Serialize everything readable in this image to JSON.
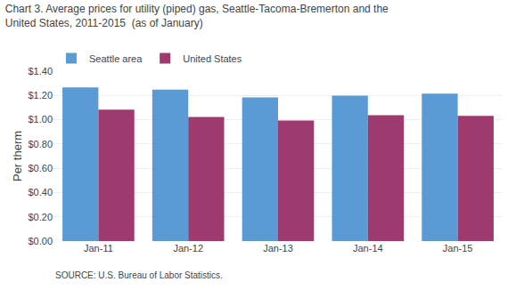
{
  "chart_data": {
    "type": "bar",
    "title": "Chart 3. Average prices for utility (piped) gas, Seattle-Tacoma-Bremerton and the",
    "subtitle": "United States, 2011-2015  (as of January)",
    "ylabel": "Per therm",
    "annotations": [
      "SOURCE: U.S. Bureau of Labor Statistics."
    ],
    "categories": [
      "Jan-11",
      "Jan-12",
      "Jan-13",
      "Jan-14",
      "Jan-15"
    ],
    "series": [
      {
        "name": "Seattle area",
        "color": "#5B9BD5",
        "values": [
          1.267,
          1.248,
          1.183,
          1.198,
          1.215
        ]
      },
      {
        "name": "United States",
        "color": "#9E3A6E",
        "values": [
          1.083,
          1.023,
          0.993,
          1.038,
          1.032
        ]
      }
    ],
    "ylim": [
      0,
      1.4
    ],
    "yticks": [
      {
        "value": 0.0,
        "label": "$0.00"
      },
      {
        "value": 0.2,
        "label": "$0.20"
      },
      {
        "value": 0.4,
        "label": "$0.40"
      },
      {
        "value": 0.6,
        "label": "$0.60"
      },
      {
        "value": 0.8,
        "label": "$0.80"
      },
      {
        "value": 1.0,
        "label": "$1.00"
      },
      {
        "value": 1.2,
        "label": "$1.20"
      },
      {
        "value": 1.4,
        "label": "$1.40"
      }
    ],
    "grid": true,
    "legend": "upper left"
  }
}
